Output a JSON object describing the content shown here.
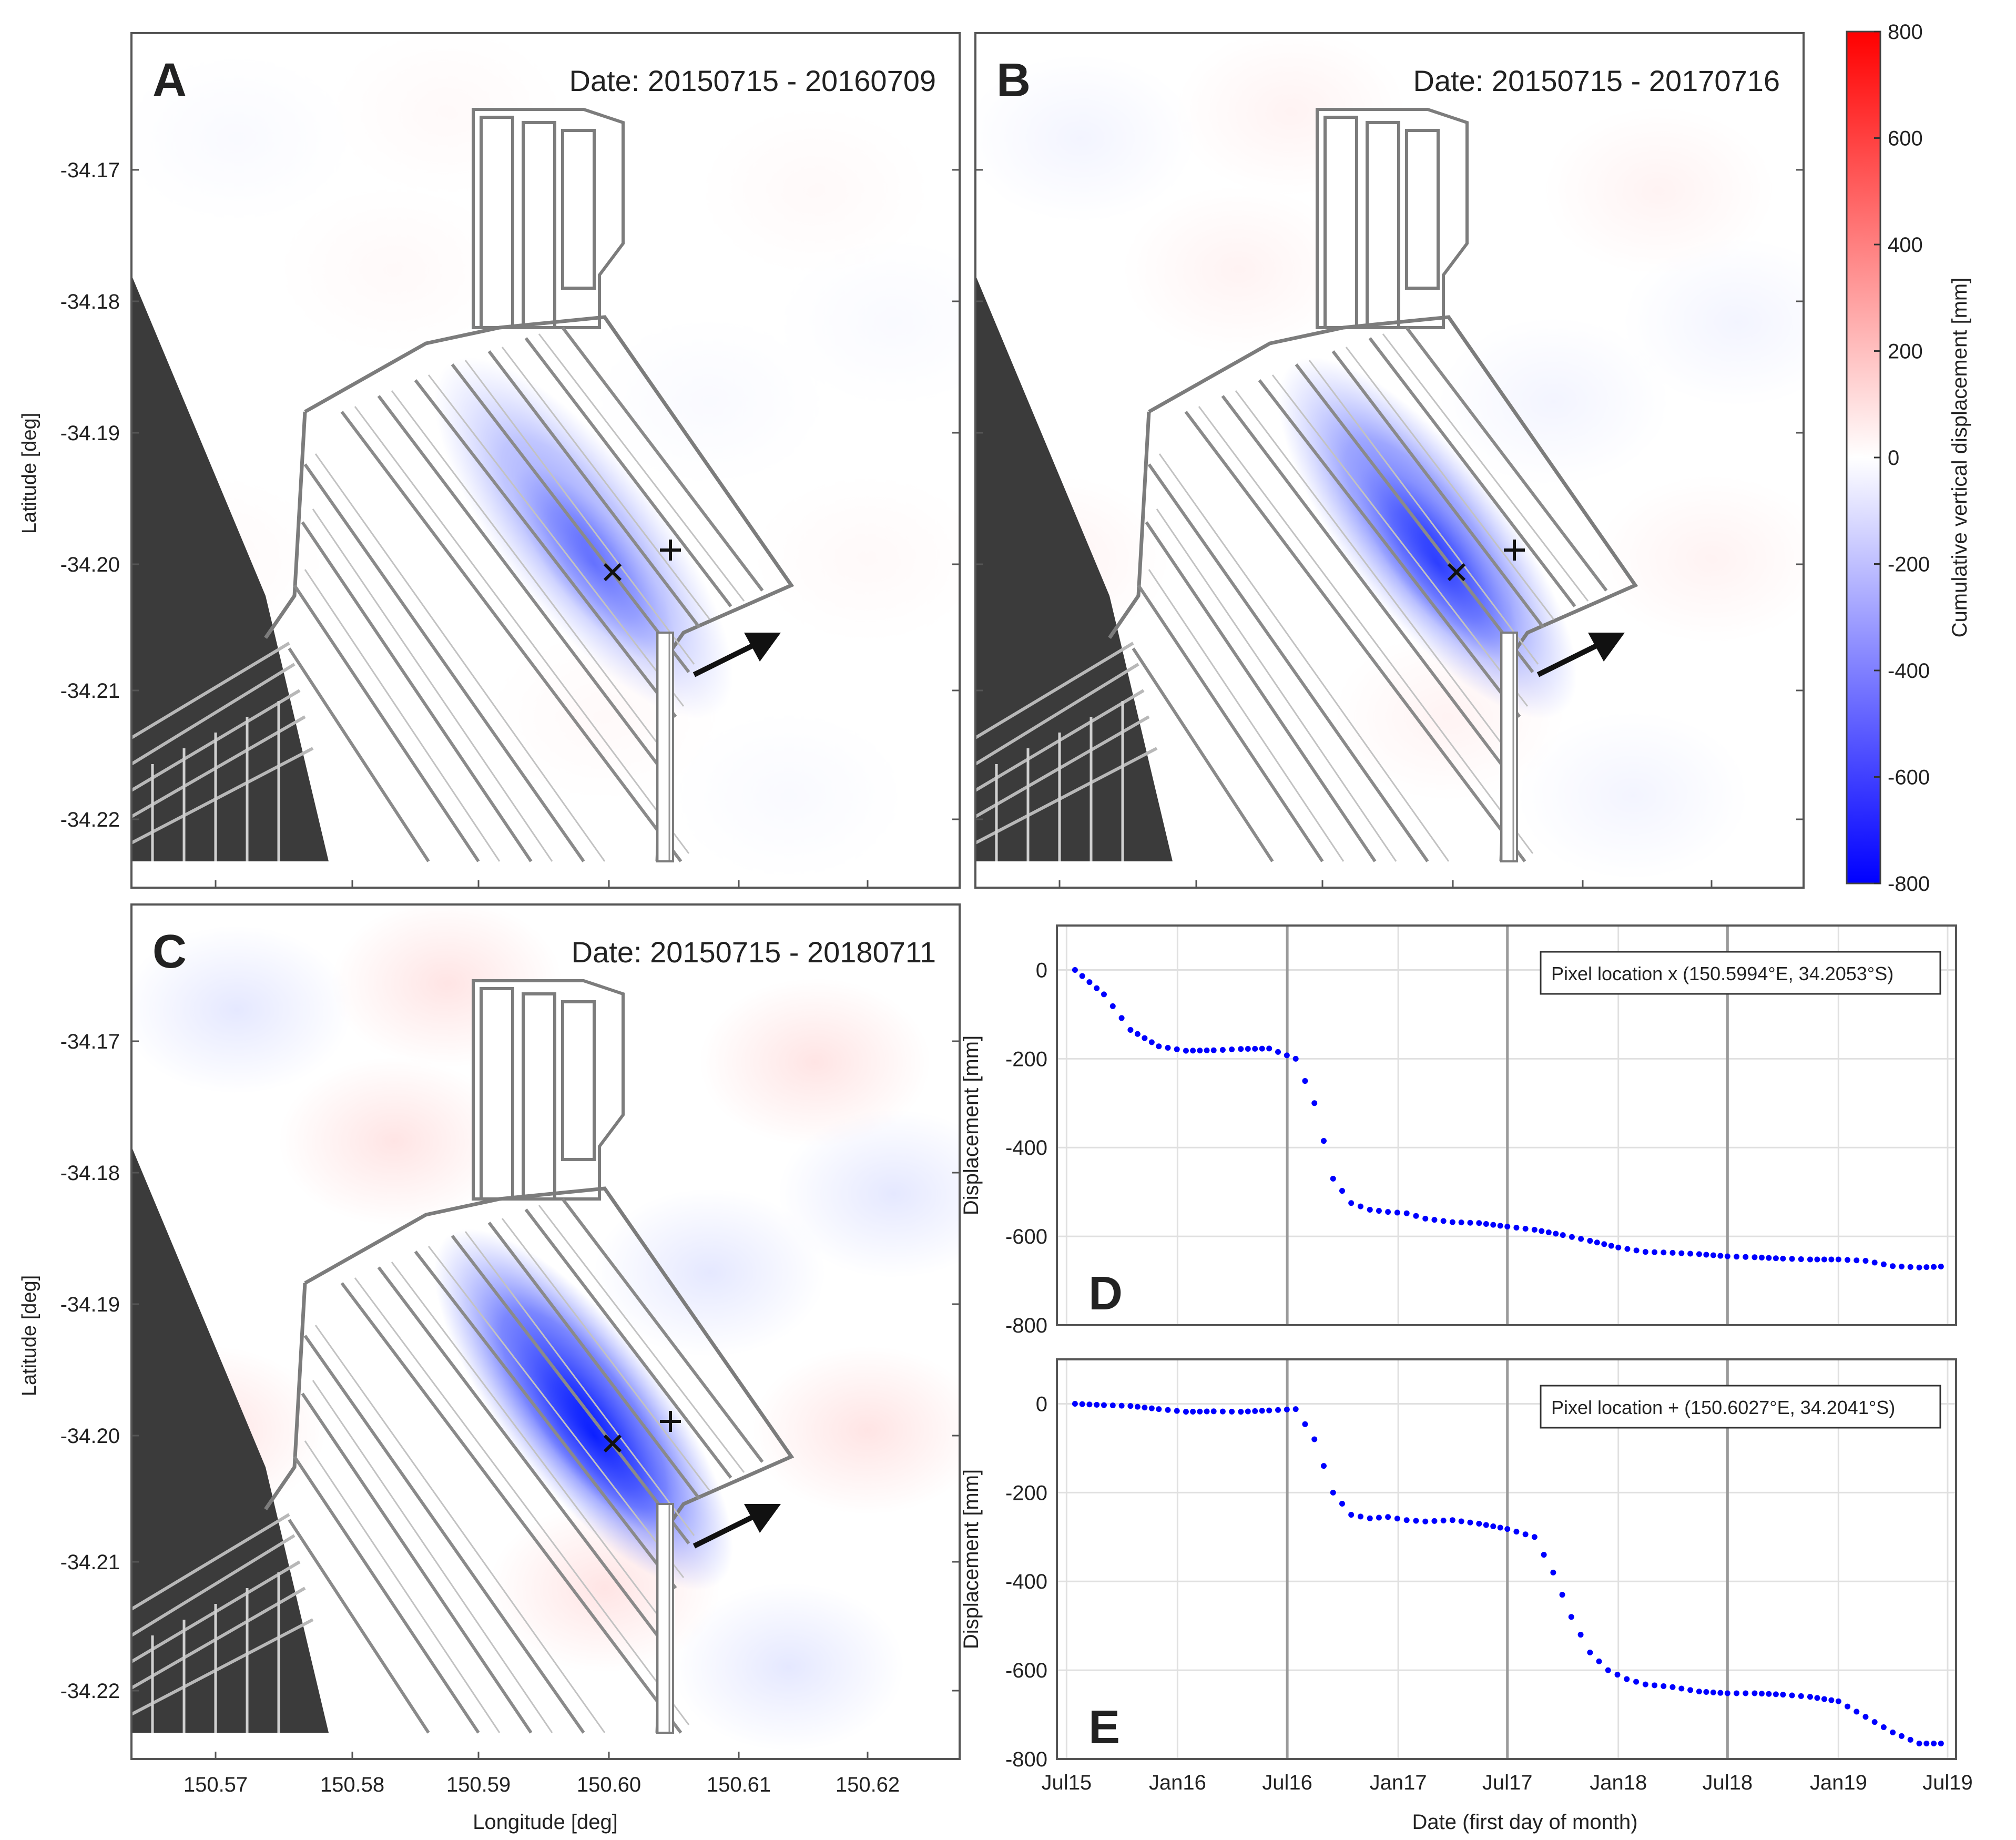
{
  "maps": [
    {
      "letter": "A",
      "date": "Date: 20150715 - 20160709",
      "intensity": 0.45,
      "bgPink": 0.15
    },
    {
      "letter": "B",
      "date": "Date: 20150715 - 20170716",
      "intensity": 0.7,
      "bgPink": 0.3
    },
    {
      "letter": "C",
      "date": "Date: 20150715 - 20180711",
      "intensity": 0.95,
      "bgPink": 0.65
    }
  ],
  "map_axes": {
    "lat_ticks": [
      "-34.17",
      "-34.18",
      "-34.19",
      "-34.20",
      "-34.21",
      "-34.22"
    ],
    "lon_ticks": [
      "150.57",
      "150.58",
      "150.59",
      "150.60",
      "150.61",
      "150.62"
    ],
    "ylabel": "Latitude [deg]",
    "xlabel": "Longitude [deg]"
  },
  "colorbar": {
    "label": "Cumulative vertical displacement [mm]",
    "ticks": [
      "800",
      "600",
      "400",
      "200",
      "0",
      "-200",
      "-400",
      "-600",
      "-800"
    ],
    "range": [
      -800,
      800
    ],
    "colors": {
      "positive": "#ff0000",
      "zero": "#ffffff",
      "negative": "#0000ff"
    }
  },
  "chart_data": [
    {
      "type": "scatter",
      "panel": "D",
      "legend": "Pixel location x (150.5994°E, 34.2053°S)",
      "ylabel": "Displacement [mm]",
      "ylim": [
        -800,
        100
      ],
      "yticks": [
        "0",
        "-200",
        "-400",
        "-600",
        "-800"
      ],
      "xlim": [
        "2015-06-15",
        "2019-07-15"
      ],
      "series_color": "#0000ff",
      "x": [
        "2015-07-15",
        "2015-09-01",
        "2015-10-15",
        "2015-12-01",
        "2016-01-15",
        "2016-03-01",
        "2016-04-15",
        "2016-06-01",
        "2016-07-15",
        "2016-08-15",
        "2016-09-15",
        "2016-10-15",
        "2016-11-15",
        "2016-12-15",
        "2017-01-15",
        "2017-02-15",
        "2017-04-01",
        "2017-05-15",
        "2017-07-01",
        "2017-08-15",
        "2017-10-01",
        "2017-11-15",
        "2018-01-01",
        "2018-02-15",
        "2018-04-01",
        "2018-05-15",
        "2018-07-01",
        "2018-08-15",
        "2018-10-01",
        "2018-11-15",
        "2019-01-01",
        "2019-02-15",
        "2019-04-01",
        "2019-05-15",
        "2019-06-20"
      ],
      "y": [
        0,
        -55,
        -135,
        -172,
        -182,
        -181,
        -178,
        -177,
        -200,
        -300,
        -470,
        -525,
        -540,
        -545,
        -548,
        -560,
        -568,
        -570,
        -578,
        -585,
        -597,
        -610,
        -625,
        -635,
        -637,
        -640,
        -645,
        -647,
        -650,
        -652,
        -652,
        -655,
        -667,
        -670,
        -668
      ]
    },
    {
      "type": "scatter",
      "panel": "E",
      "legend": "Pixel location + (150.6027°E, 34.2041°S)",
      "ylabel": "Displacement [mm]",
      "xlabel": "Date (first day of month)",
      "ylim": [
        -800,
        100
      ],
      "yticks": [
        "0",
        "-200",
        "-400",
        "-600",
        "-800"
      ],
      "xlim": [
        "2015-06-15",
        "2019-07-15"
      ],
      "xticks": [
        "Jul15",
        "Jan16",
        "Jul16",
        "Jan17",
        "Jul17",
        "Jan18",
        "Jul18",
        "Jan19",
        "Jul19"
      ],
      "series_color": "#0000ff",
      "x": [
        "2015-07-15",
        "2015-09-01",
        "2015-10-15",
        "2015-12-01",
        "2016-01-15",
        "2016-03-01",
        "2016-04-15",
        "2016-06-01",
        "2016-07-15",
        "2016-08-15",
        "2016-09-15",
        "2016-10-15",
        "2016-11-15",
        "2016-12-15",
        "2017-01-15",
        "2017-02-15",
        "2017-04-01",
        "2017-05-15",
        "2017-07-01",
        "2017-08-15",
        "2017-09-15",
        "2017-10-15",
        "2017-11-15",
        "2017-12-15",
        "2018-01-15",
        "2018-02-15",
        "2018-04-01",
        "2018-05-15",
        "2018-07-01",
        "2018-08-15",
        "2018-10-01",
        "2018-11-15",
        "2019-01-01",
        "2019-02-15",
        "2019-04-01",
        "2019-05-15",
        "2019-06-20"
      ],
      "y": [
        0,
        -3,
        -5,
        -12,
        -18,
        -17,
        -18,
        -15,
        -12,
        -80,
        -200,
        -250,
        -258,
        -255,
        -262,
        -265,
        -262,
        -270,
        -282,
        -300,
        -380,
        -480,
        -560,
        -600,
        -620,
        -632,
        -638,
        -648,
        -652,
        -652,
        -655,
        -660,
        -670,
        -705,
        -740,
        -765,
        -765
      ]
    }
  ]
}
